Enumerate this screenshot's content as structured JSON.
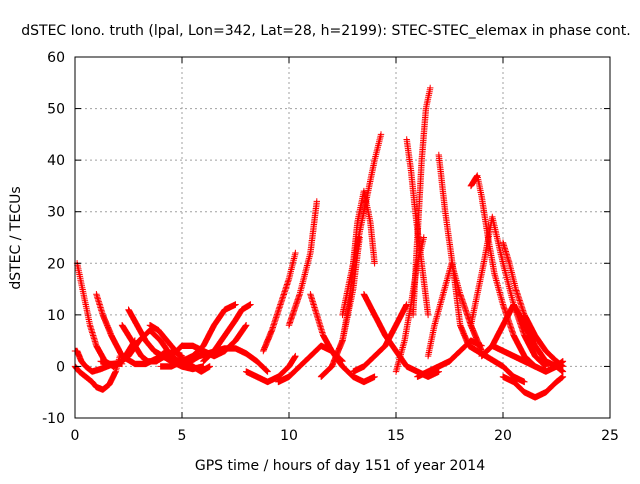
{
  "chart_data": {
    "type": "scatter",
    "title": "dSTEC Iono. truth (lpal, Lon=342, Lat=28, h=2199): STEC-STEC_elemax in phase cont.",
    "xlabel": "GPS time / hours of day 151 of year 2014",
    "ylabel": "dSTEC  / TECUs",
    "xlim": [
      0,
      25
    ],
    "ylim": [
      -10,
      60
    ],
    "xticks": [
      0,
      5,
      10,
      15,
      20,
      25
    ],
    "yticks": [
      -10,
      0,
      10,
      20,
      30,
      40,
      50,
      60
    ],
    "grid": true,
    "marker": "+",
    "color": "#ff0000",
    "series": [
      {
        "x": [
          0.0,
          0.1,
          0.2,
          0.3,
          0.5,
          0.8,
          1.2,
          1.5,
          1.8,
          2.0,
          2.2
        ],
        "y": [
          3,
          3,
          2,
          1,
          0,
          -1,
          -0.5,
          0,
          0.5,
          0.6,
          0.5
        ]
      },
      {
        "x": [
          0.1,
          0.3,
          0.5,
          0.7,
          1.0,
          1.4,
          1.8,
          2.2,
          2.5,
          2.8
        ],
        "y": [
          20,
          16,
          12,
          8,
          4,
          1,
          0,
          1,
          3,
          5
        ]
      },
      {
        "x": [
          0.0,
          0.2,
          0.5,
          0.8,
          1.0,
          1.3,
          1.6,
          1.9,
          2.1
        ],
        "y": [
          0,
          -1,
          -2,
          -3,
          -4,
          -4.5,
          -3.5,
          -1,
          2
        ]
      },
      {
        "x": [
          1.0,
          1.3,
          1.7,
          2.2,
          2.8,
          3.3,
          3.8,
          4.3
        ],
        "y": [
          14,
          10,
          6,
          2,
          0.5,
          0.5,
          1.5,
          3
        ]
      },
      {
        "x": [
          1.2,
          1.6,
          2.0,
          2.5,
          3.0,
          3.5,
          4.0,
          4.5,
          5.0
        ],
        "y": [
          1,
          0.5,
          0.5,
          2,
          5,
          7,
          5,
          2,
          0.5
        ]
      },
      {
        "x": [
          2.2,
          2.5,
          2.8,
          3.1,
          3.4,
          3.8,
          4.2,
          4.6,
          5.0
        ],
        "y": [
          8,
          6,
          4,
          2,
          1,
          1,
          2,
          3,
          2
        ]
      },
      {
        "x": [
          2.5,
          2.9,
          3.3,
          3.7,
          4.1,
          4.5,
          5.0,
          5.5,
          6.0
        ],
        "y": [
          11,
          8,
          5,
          3,
          2,
          1,
          0,
          -0.5,
          0
        ]
      },
      {
        "x": [
          3.5,
          3.9,
          4.3,
          4.7,
          5.1,
          5.5,
          5.9,
          6.3
        ],
        "y": [
          8,
          7,
          5,
          3,
          1,
          0,
          -1,
          0
        ]
      },
      {
        "x": [
          4.0,
          4.5,
          5.0,
          5.5,
          6.0,
          6.5,
          7.0,
          7.5
        ],
        "y": [
          0,
          0,
          1,
          2,
          4,
          8,
          11,
          12
        ]
      },
      {
        "x": [
          4.5,
          5.0,
          5.5,
          6.0,
          6.5,
          7.0,
          7.5,
          8.0
        ],
        "y": [
          2,
          4,
          4,
          3,
          2,
          3,
          5,
          8
        ]
      },
      {
        "x": [
          5.0,
          5.4,
          5.8,
          6.2,
          6.6,
          7.0,
          7.5,
          8.0,
          8.5,
          9.0
        ],
        "y": [
          0,
          1,
          2,
          2.5,
          3,
          3.5,
          3.5,
          2.5,
          1,
          -1
        ]
      },
      {
        "x": [
          6.0,
          6.5,
          7.0,
          7.5,
          7.8,
          8.2
        ],
        "y": [
          1,
          3,
          6,
          9,
          11,
          12
        ]
      },
      {
        "x": [
          8.0,
          8.5,
          9.0,
          9.5,
          10.0,
          10.3
        ],
        "y": [
          -1,
          -2,
          -3,
          -2,
          0,
          2
        ]
      },
      {
        "x": [
          8.8,
          9.2,
          9.6,
          10.0,
          10.3
        ],
        "y": [
          3,
          7,
          12,
          17,
          22
        ]
      },
      {
        "x": [
          9.5,
          10.0,
          10.5,
          11.0,
          11.5,
          12.0,
          12.5
        ],
        "y": [
          -3,
          -2,
          0,
          2,
          4,
          3,
          1
        ]
      },
      {
        "x": [
          10.0,
          10.5,
          11.0,
          11.3
        ],
        "y": [
          8,
          14,
          22,
          32
        ]
      },
      {
        "x": [
          11.0,
          11.3,
          11.6,
          12.0,
          12.5,
          13.0,
          13.5,
          14.0
        ],
        "y": [
          14,
          10,
          6,
          3,
          0,
          -2,
          -3,
          -2
        ]
      },
      {
        "x": [
          11.5,
          12.0,
          12.5,
          13.0,
          13.3
        ],
        "y": [
          -2,
          0,
          5,
          15,
          25
        ]
      },
      {
        "x": [
          12.5,
          12.8,
          13.0,
          13.2,
          13.5,
          13.8,
          14.0
        ],
        "y": [
          5,
          12,
          20,
          28,
          34,
          28,
          20
        ]
      },
      {
        "x": [
          12.5,
          13.0,
          13.5,
          14.0,
          14.3
        ],
        "y": [
          10,
          20,
          30,
          40,
          45
        ]
      },
      {
        "x": [
          13.5,
          14.0,
          14.5,
          15.0,
          15.5,
          16.0,
          16.5,
          17.0
        ],
        "y": [
          14,
          10,
          6,
          3,
          0,
          -1,
          -2,
          -1
        ]
      },
      {
        "x": [
          13.0,
          13.5,
          14.0,
          14.5,
          15.0,
          15.5
        ],
        "y": [
          -1,
          0,
          2,
          4,
          8,
          12
        ]
      },
      {
        "x": [
          15.0,
          15.4,
          15.7,
          16.0,
          16.3
        ],
        "y": [
          -1,
          5,
          12,
          20,
          25
        ]
      },
      {
        "x": [
          15.5,
          15.7,
          15.9,
          16.2,
          16.5
        ],
        "y": [
          44,
          38,
          30,
          20,
          10
        ]
      },
      {
        "x": [
          15.8,
          16.0,
          16.2,
          16.4,
          16.6
        ],
        "y": [
          10,
          25,
          40,
          50,
          54
        ]
      },
      {
        "x": [
          16.5,
          16.8,
          17.2,
          17.6,
          18.0,
          18.5,
          19.0
        ],
        "y": [
          2,
          8,
          14,
          20,
          14,
          8,
          3
        ]
      },
      {
        "x": [
          16.0,
          16.5,
          17.0,
          17.5,
          18.0,
          18.5,
          19.0
        ],
        "y": [
          -2,
          -1,
          0,
          1,
          3,
          5,
          4
        ]
      },
      {
        "x": [
          17.0,
          17.3,
          17.7,
          18.0,
          18.4,
          18.8,
          19.2,
          19.6,
          20.0,
          20.5,
          21.0
        ],
        "y": [
          41,
          30,
          18,
          8,
          4,
          3,
          2,
          1,
          0,
          -2,
          -3
        ]
      },
      {
        "x": [
          18.5,
          18.8,
          19.0,
          19.3,
          19.6,
          20.0,
          20.5,
          21.0,
          21.5
        ],
        "y": [
          35,
          37,
          33,
          25,
          18,
          12,
          6,
          2,
          0
        ]
      },
      {
        "x": [
          18.5,
          18.8,
          19.1,
          19.5,
          20.0,
          20.5,
          21.0,
          21.5,
          22.0
        ],
        "y": [
          8,
          14,
          20,
          29,
          20,
          12,
          6,
          2,
          0
        ]
      },
      {
        "x": [
          19.0,
          19.5,
          20.0,
          20.5,
          21.0,
          21.5,
          22.0,
          22.5,
          22.8
        ],
        "y": [
          2,
          4,
          8,
          12,
          8,
          4,
          1,
          0,
          -1
        ]
      },
      {
        "x": [
          20.0,
          20.3,
          20.6,
          21.0,
          21.5,
          22.0,
          22.5,
          22.8
        ],
        "y": [
          24,
          20,
          15,
          10,
          6,
          3,
          1,
          0
        ]
      },
      {
        "x": [
          20.0,
          20.5,
          21.0,
          21.5,
          22.0,
          22.5,
          22.8
        ],
        "y": [
          -2,
          -3,
          -5,
          -6,
          -5,
          -3,
          -2
        ]
      },
      {
        "x": [
          19.5,
          20.0,
          20.5,
          21.0,
          21.5,
          22.0,
          22.5,
          22.8
        ],
        "y": [
          4,
          3,
          2,
          1,
          0,
          -1,
          0,
          1
        ]
      }
    ]
  }
}
